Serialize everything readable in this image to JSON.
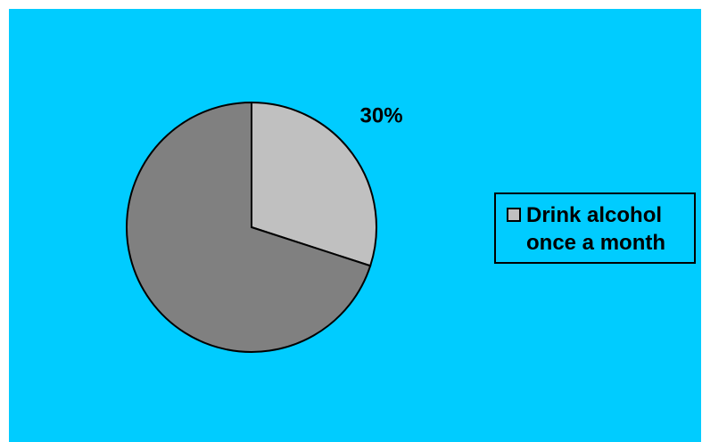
{
  "colors": {
    "background": "#00CCFF",
    "slice_highlight": "#C0C0C0",
    "slice_rest": "#808080",
    "outline": "#000000"
  },
  "chart_data": {
    "type": "pie",
    "title": "",
    "slices": [
      {
        "name": "Drink alcohol once a month",
        "value": 30,
        "label": "30%",
        "color": "#C0C0C0"
      },
      {
        "value": 70,
        "label": "",
        "color": "#808080"
      }
    ],
    "start_angle_deg": 0,
    "direction": "clockwise",
    "legend": {
      "placement": "right",
      "entries": [
        {
          "name": "Drink alcohol once a month",
          "color": "#C0C0C0"
        }
      ]
    }
  }
}
